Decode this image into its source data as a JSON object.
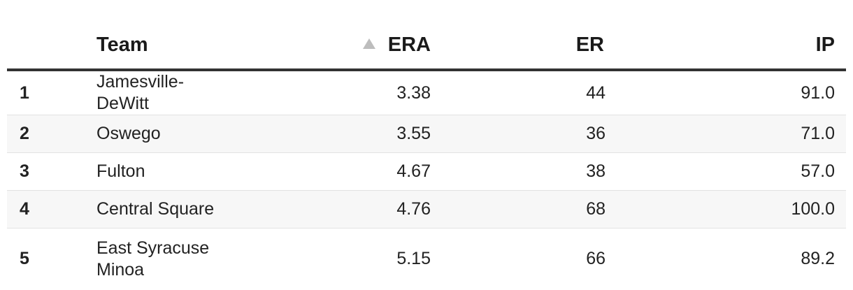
{
  "table": {
    "columns": {
      "rank": "",
      "team": "Team",
      "era": "ERA",
      "er": "ER",
      "ip": "IP"
    },
    "sort": {
      "column": "ERA",
      "direction": "ascending",
      "icon": "sort-ascending-icon"
    },
    "rows": [
      {
        "rank": "1",
        "team": "Jamesville-DeWitt",
        "era": "3.38",
        "er": "44",
        "ip": "91.0"
      },
      {
        "rank": "2",
        "team": "Oswego",
        "era": "3.55",
        "er": "36",
        "ip": "71.0"
      },
      {
        "rank": "3",
        "team": "Fulton",
        "era": "4.67",
        "er": "38",
        "ip": "57.0"
      },
      {
        "rank": "4",
        "team": "Central Square",
        "era": "4.76",
        "er": "68",
        "ip": "100.0"
      },
      {
        "rank": "5",
        "team": "East Syracuse Minoa",
        "era": "5.15",
        "er": "66",
        "ip": "89.2"
      }
    ]
  }
}
